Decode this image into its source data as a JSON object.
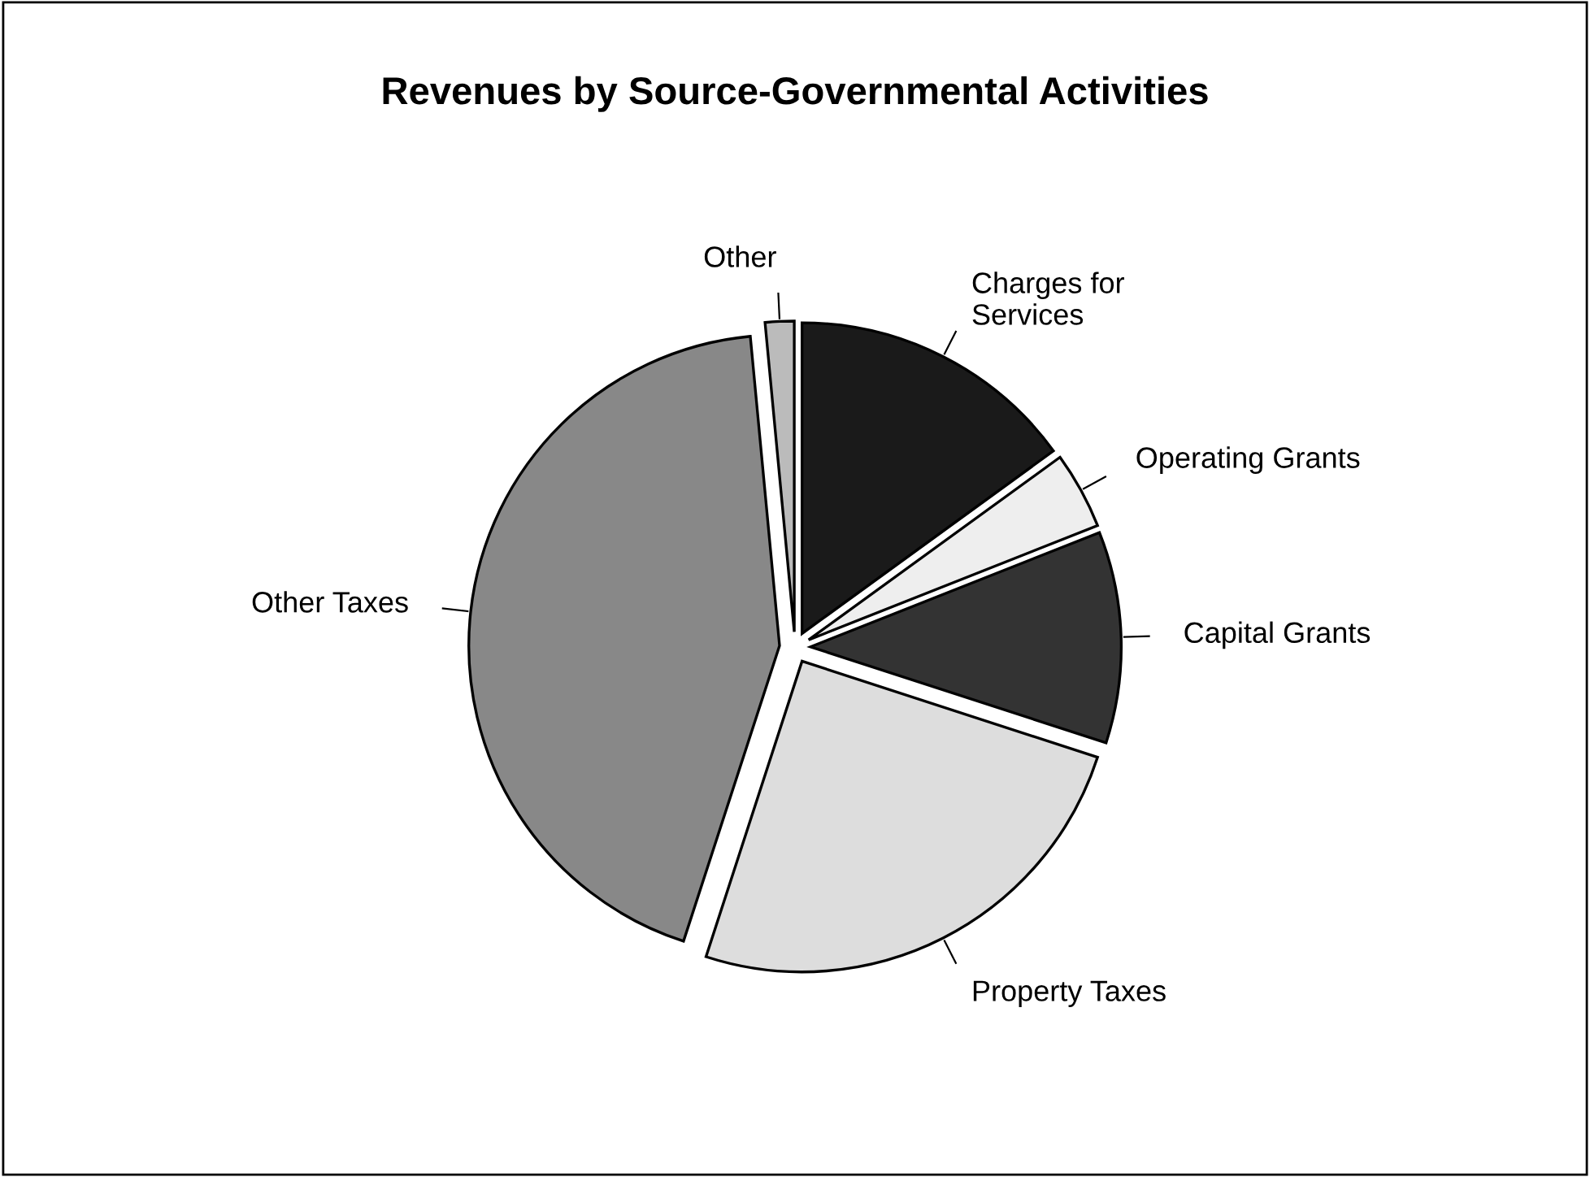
{
  "chart_data": {
    "type": "pie",
    "title": "Revenues by Source-Governmental Activities",
    "categories": [
      "Charges for\nServices",
      "Operating Grants",
      "Capital Grants",
      "Property Taxes",
      "Other Taxes",
      "Other"
    ],
    "values": [
      15,
      4,
      11,
      25,
      43.5,
      1.5
    ],
    "colors": [
      "#1a1a1a",
      "#eeeeee",
      "#333333",
      "#dddddd",
      "#888888",
      "#bbbbbb"
    ]
  }
}
